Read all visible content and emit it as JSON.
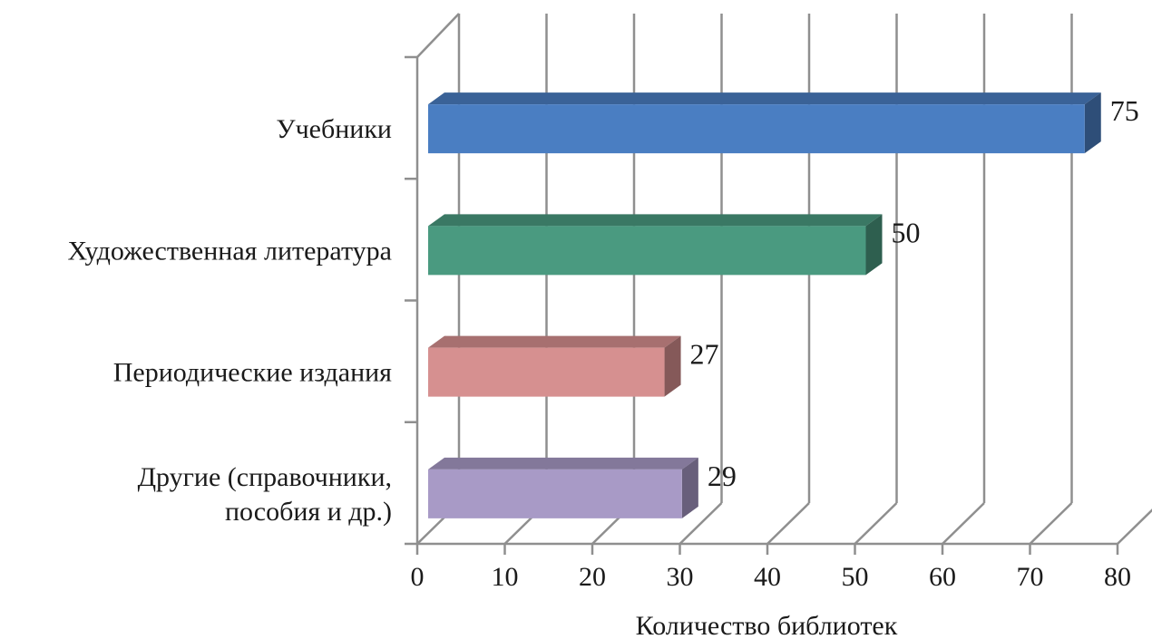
{
  "chart_data": {
    "type": "bar",
    "orientation": "horizontal",
    "style": "3d",
    "categories": [
      [
        "Учебники"
      ],
      [
        "Художественная литература"
      ],
      [
        "Периодические издания"
      ],
      [
        "Другие (справочники,",
        "пособия и др.)"
      ]
    ],
    "values": [
      75,
      50,
      27,
      29
    ],
    "bar_colors": [
      "#4A7EC2",
      "#4A9A80",
      "#D69090",
      "#A89AC6"
    ],
    "xlabel": "Количество библиотек",
    "xlim": [
      0,
      80
    ],
    "xticks": [
      0,
      10,
      20,
      30,
      40,
      50,
      60,
      70,
      80
    ],
    "grid": true,
    "legend": "none"
  }
}
